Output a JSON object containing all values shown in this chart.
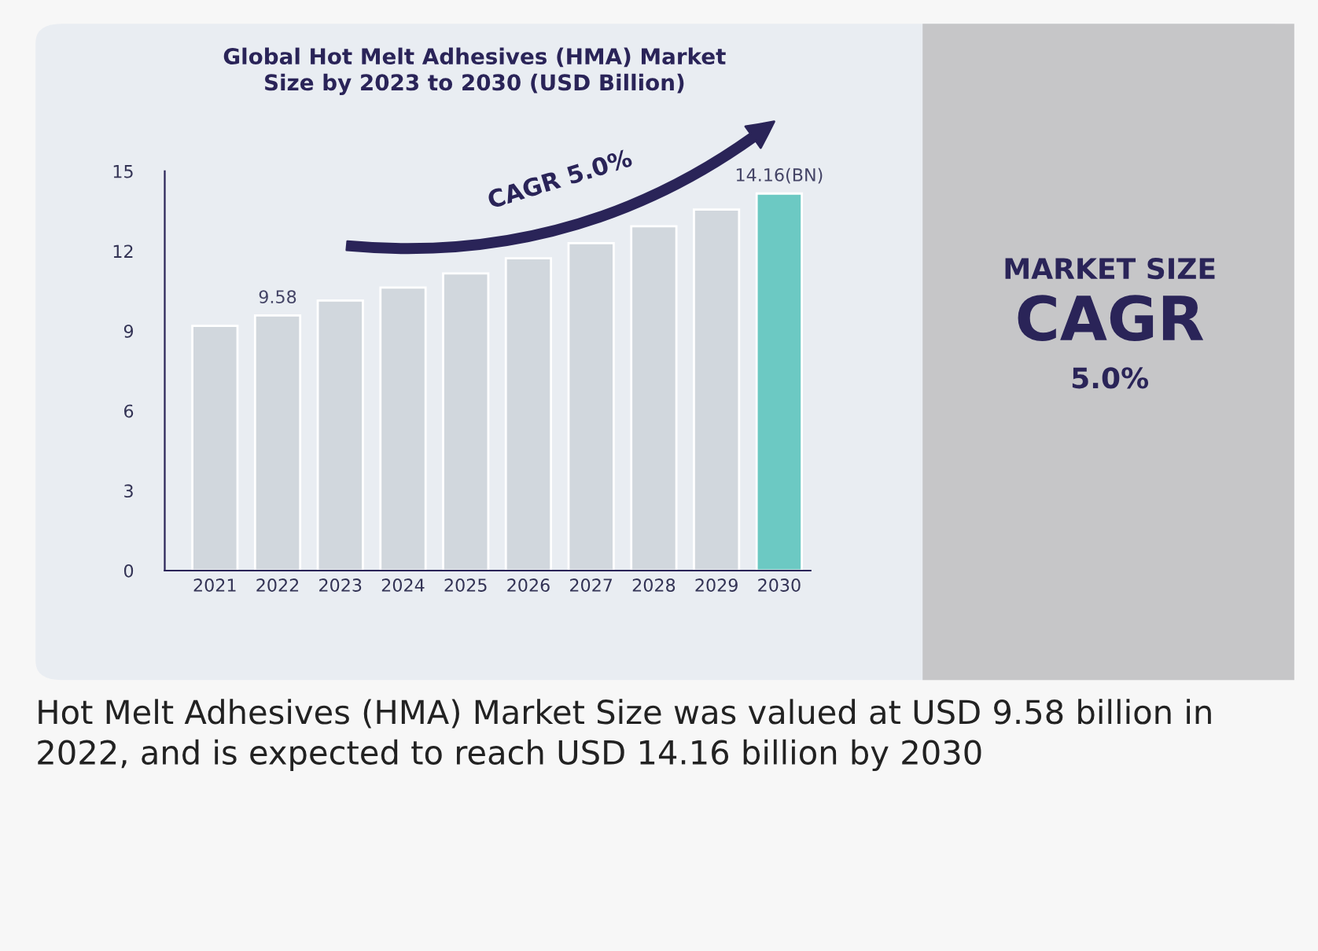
{
  "chart_data": {
    "type": "bar",
    "title": "Global Hot Melt Adhesives (HMA) Market\nSize by 2023 to 2030 (USD Billion)",
    "categories": [
      "2021",
      "2022",
      "2023",
      "2024",
      "2025",
      "2026",
      "2027",
      "2028",
      "2029",
      "2030"
    ],
    "values": [
      9.19,
      9.58,
      10.14,
      10.63,
      11.16,
      11.73,
      12.3,
      12.93,
      13.56,
      14.16
    ],
    "colors": [
      "#d1d7dd",
      "#d1d7dd",
      "#d1d7dd",
      "#d1d7dd",
      "#d1d7dd",
      "#d1d7dd",
      "#d1d7dd",
      "#d1d7dd",
      "#d1d7dd",
      "#6cc9c3"
    ],
    "value_labels": [
      null,
      "9.58",
      null,
      null,
      null,
      null,
      null,
      null,
      null,
      "14.16(BN)"
    ],
    "ylim": [
      0,
      15
    ],
    "yticks": [
      0,
      3,
      6,
      9,
      12,
      15
    ],
    "grid": false,
    "annotations": [
      "CAGR 5.0%",
      "MARKET SIZE",
      "CAGR",
      "5.0%",
      "Hot Melt Adhesives (HMA) Market Size was valued at USD 9.58 billion in 2022, and is expected to reach USD 14.16 billion by 2030"
    ]
  }
}
